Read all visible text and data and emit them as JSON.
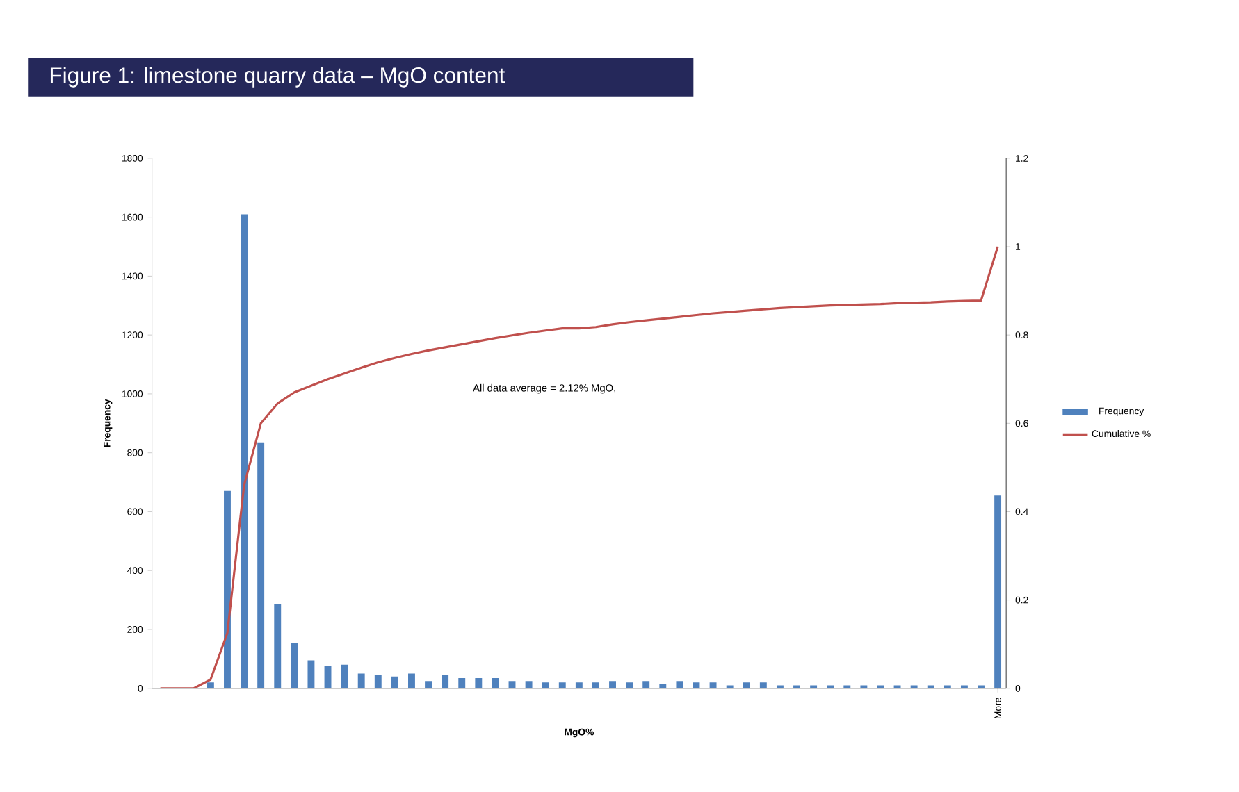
{
  "chart_data": {
    "type": "bar",
    "title": "Figure 1: limestone quarry data – MgO content",
    "xlabel": "MgO%",
    "ylabel": "Frequency",
    "categories": [
      null,
      null,
      null,
      null,
      null,
      null,
      null,
      null,
      null,
      null,
      null,
      null,
      null,
      null,
      null,
      null,
      null,
      null,
      null,
      null,
      null,
      null,
      null,
      null,
      null,
      null,
      null,
      null,
      null,
      null,
      null,
      null,
      null,
      null,
      null,
      null,
      null,
      null,
      null,
      null,
      null,
      null,
      null,
      null,
      null,
      null,
      null,
      null,
      null,
      null,
      "More"
    ],
    "series": [
      {
        "name": "Frequency",
        "color": "#4f81bd",
        "values": [
          0,
          0,
          0,
          20,
          670,
          1610,
          835,
          285,
          155,
          95,
          75,
          80,
          50,
          45,
          40,
          50,
          25,
          45,
          35,
          35,
          35,
          25,
          25,
          20,
          20,
          20,
          20,
          25,
          20,
          25,
          15,
          25,
          20,
          20,
          10,
          20,
          20,
          10,
          10,
          10,
          10,
          10,
          10,
          10,
          10,
          10,
          10,
          10,
          10,
          10,
          655
        ]
      },
      {
        "name": "Cumulative %",
        "type": "line",
        "axis": "y2",
        "color": "#c0504d",
        "values": [
          0,
          0,
          0,
          0.02,
          0.125,
          0.46,
          0.6,
          0.645,
          0.67,
          0.685,
          0.7,
          0.713,
          0.726,
          0.738,
          0.748,
          0.757,
          0.765,
          0.772,
          0.779,
          0.786,
          0.793,
          0.799,
          0.805,
          0.81,
          0.815,
          0.815,
          0.818,
          0.824,
          0.829,
          0.833,
          0.837,
          0.841,
          0.845,
          0.849,
          0.852,
          0.855,
          0.858,
          0.861,
          0.863,
          0.865,
          0.867,
          0.868,
          0.869,
          0.87,
          0.872,
          0.873,
          0.874,
          0.876,
          0.877,
          0.878,
          1.0
        ]
      }
    ],
    "ylim": [
      0,
      1800
    ],
    "yticks": [
      0,
      200,
      400,
      600,
      800,
      1000,
      1200,
      1400,
      1600,
      1800
    ],
    "y2lim": [
      0,
      1.2
    ],
    "y2ticks": [
      0,
      0.2,
      0.4,
      0.6,
      0.8,
      1,
      1.2
    ],
    "legend": "right",
    "annotations": [
      "All data average = 2.12% MgO,"
    ]
  }
}
